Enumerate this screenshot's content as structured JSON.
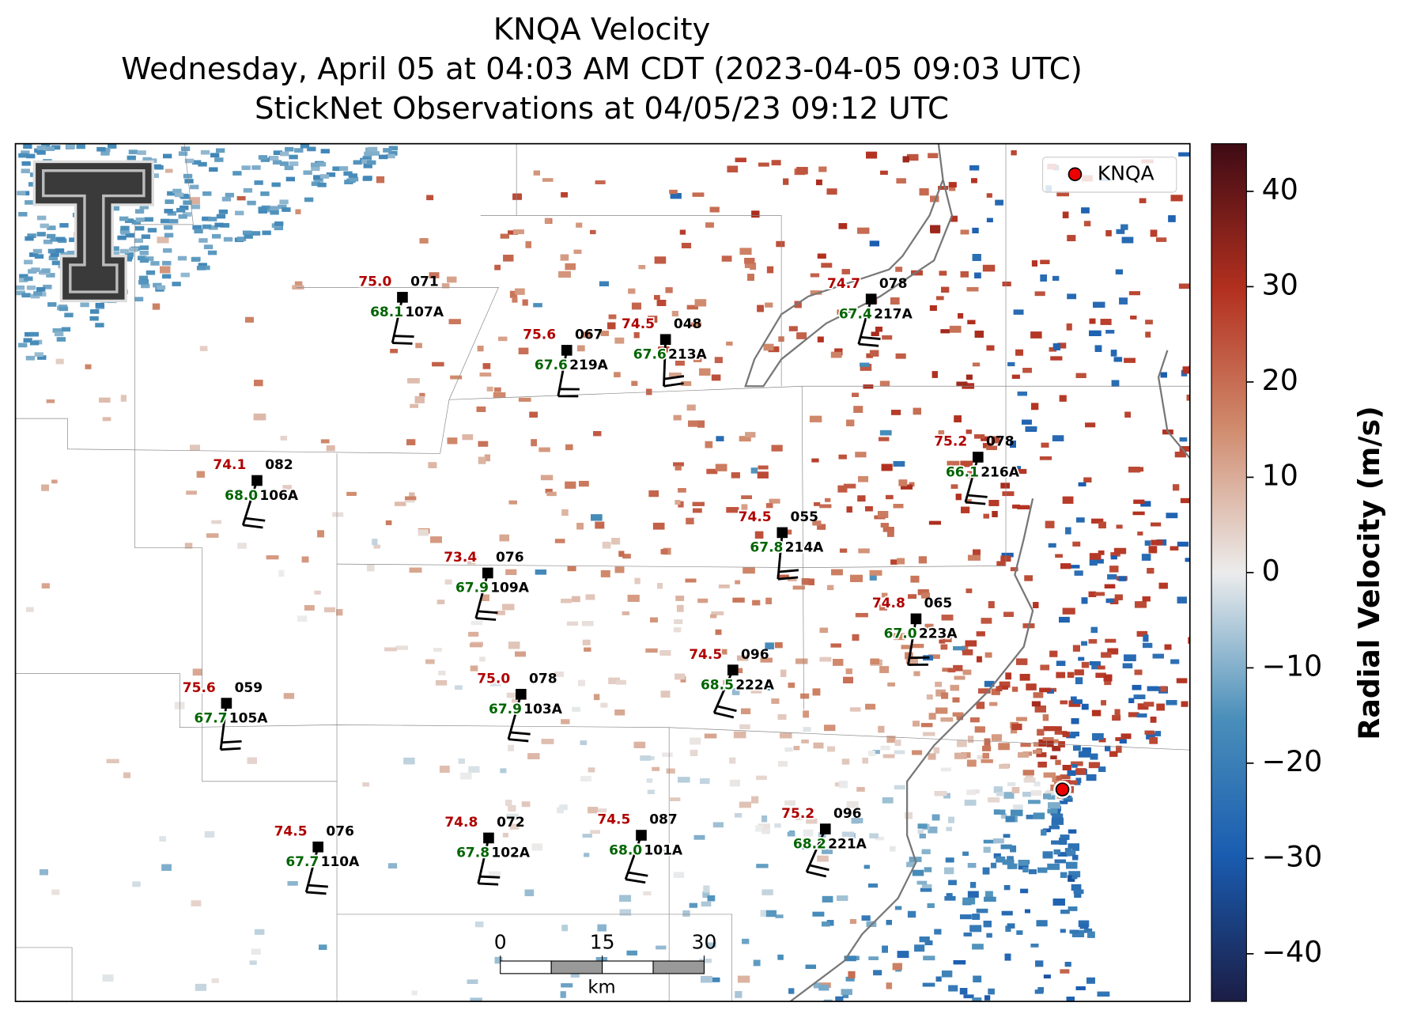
{
  "title": [
    "KNQA Velocity",
    "Wednesday, April 05 at 04:03 AM CDT (2023-04-05 09:03 UTC)",
    "StickNet Observations at 04/05/23 09:12 UTC"
  ],
  "legend": {
    "label": "KNQA"
  },
  "colorbar": {
    "label": "Radial Velocity (m/s)",
    "lim": [
      -45,
      45
    ],
    "ticks": [
      40,
      30,
      20,
      10,
      0,
      {
        "value": -10,
        "label": "−10"
      },
      {
        "value": -20,
        "label": "−20"
      },
      {
        "value": -30,
        "label": "−30"
      },
      {
        "value": -40,
        "label": "−40"
      }
    ]
  },
  "scale_bar": {
    "ticks": [
      0,
      15,
      30
    ],
    "unit": "km"
  },
  "stations": [
    {
      "id": "107A",
      "temperature": "75.0",
      "dewpoint": "68.1",
      "direction": "071"
    },
    {
      "id": "219A",
      "temperature": "75.6",
      "dewpoint": "67.6",
      "direction": "067"
    },
    {
      "id": "213A",
      "temperature": "74.5",
      "dewpoint": "67.6",
      "direction": "048"
    },
    {
      "id": "217A",
      "temperature": "74.7",
      "dewpoint": "67.4",
      "direction": "078"
    },
    {
      "id": "216A",
      "temperature": "75.2",
      "dewpoint": "66.1",
      "direction": "078"
    },
    {
      "id": "106A",
      "temperature": "74.1",
      "dewpoint": "68.0",
      "direction": "082"
    },
    {
      "id": "214A",
      "temperature": "74.5",
      "dewpoint": "67.8",
      "direction": "055"
    },
    {
      "id": "109A",
      "temperature": "73.4",
      "dewpoint": "67.9",
      "direction": "076"
    },
    {
      "id": "223A",
      "temperature": "74.8",
      "dewpoint": "67.0",
      "direction": "065"
    },
    {
      "id": "222A",
      "temperature": "74.5",
      "dewpoint": "68.5",
      "direction": "096"
    },
    {
      "id": "103A",
      "temperature": "75.0",
      "dewpoint": "67.9",
      "direction": "078"
    },
    {
      "id": "105A",
      "temperature": "75.6",
      "dewpoint": "67.7",
      "direction": "059"
    },
    {
      "id": "110A",
      "temperature": "74.5",
      "dewpoint": "67.7",
      "direction": "076"
    },
    {
      "id": "102A",
      "temperature": "74.8",
      "dewpoint": "67.8",
      "direction": "072"
    },
    {
      "id": "101A",
      "temperature": "74.5",
      "dewpoint": "68.0",
      "direction": "087"
    },
    {
      "id": "221A",
      "temperature": "75.2",
      "dewpoint": "68.2",
      "direction": "096"
    }
  ]
}
